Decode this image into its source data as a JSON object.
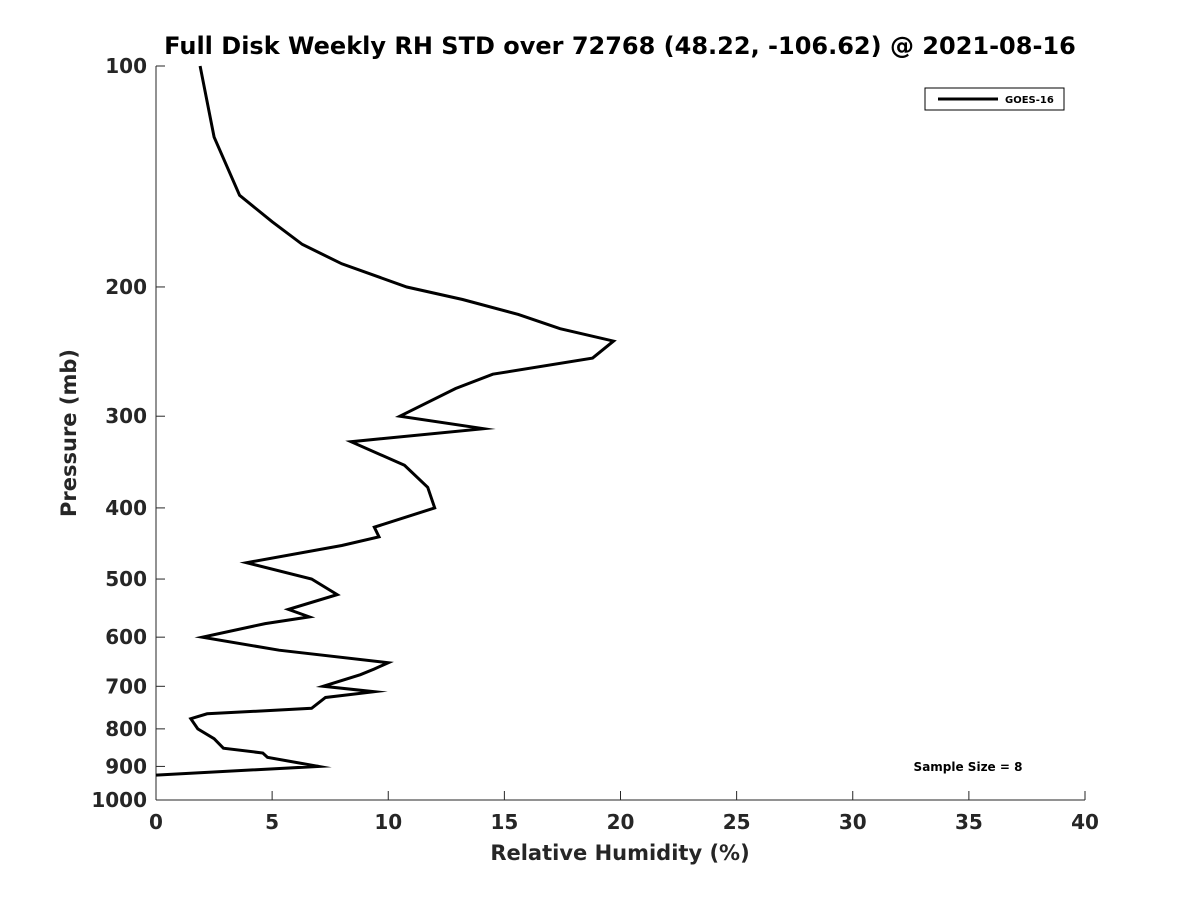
{
  "chart_data": {
    "type": "line",
    "title": "Full Disk Weekly RH STD over 72768 (48.22, -106.62) @ 2021-08-16",
    "xlabel": "Relative Humidity (%)",
    "ylabel": "Pressure (mb)",
    "xlim": [
      0,
      40
    ],
    "ylim": [
      100,
      1000
    ],
    "y_scale": "log",
    "y_reversed": true,
    "x_ticks": [
      0,
      5,
      10,
      15,
      20,
      25,
      30,
      35,
      40
    ],
    "y_ticks": [
      100,
      200,
      300,
      400,
      500,
      600,
      700,
      800,
      900,
      1000
    ],
    "grid": false,
    "legend_position": "top-right",
    "annotation": "Sample Size = 8",
    "series": [
      {
        "name": "GOES-16",
        "color": "#000000",
        "points": [
          [
            1.9,
            100
          ],
          [
            2.5,
            125
          ],
          [
            3.6,
            150
          ],
          [
            5.0,
            163
          ],
          [
            6.3,
            175
          ],
          [
            8.0,
            186
          ],
          [
            10.8,
            200
          ],
          [
            13.2,
            208
          ],
          [
            15.6,
            218
          ],
          [
            17.4,
            228
          ],
          [
            19.7,
            237
          ],
          [
            18.8,
            250
          ],
          [
            14.5,
            263
          ],
          [
            12.9,
            275
          ],
          [
            10.5,
            300
          ],
          [
            14.1,
            312
          ],
          [
            8.4,
            325
          ],
          [
            10.7,
            350
          ],
          [
            11.7,
            375
          ],
          [
            12.0,
            400
          ],
          [
            9.4,
            425
          ],
          [
            9.6,
            438
          ],
          [
            8.0,
            450
          ],
          [
            3.9,
            475
          ],
          [
            6.7,
            500
          ],
          [
            7.8,
            525
          ],
          [
            5.7,
            550
          ],
          [
            6.6,
            563
          ],
          [
            4.7,
            575
          ],
          [
            2.0,
            600
          ],
          [
            5.3,
            625
          ],
          [
            10.0,
            650
          ],
          [
            9.4,
            663
          ],
          [
            8.8,
            675
          ],
          [
            7.2,
            700
          ],
          [
            9.4,
            712
          ],
          [
            7.3,
            725
          ],
          [
            6.7,
            750
          ],
          [
            2.2,
            763
          ],
          [
            1.5,
            775
          ],
          [
            1.8,
            800
          ],
          [
            2.5,
            825
          ],
          [
            2.9,
            850
          ],
          [
            4.6,
            863
          ],
          [
            4.8,
            875
          ],
          [
            7.0,
            900
          ],
          [
            0.0,
            925
          ]
        ]
      }
    ]
  }
}
